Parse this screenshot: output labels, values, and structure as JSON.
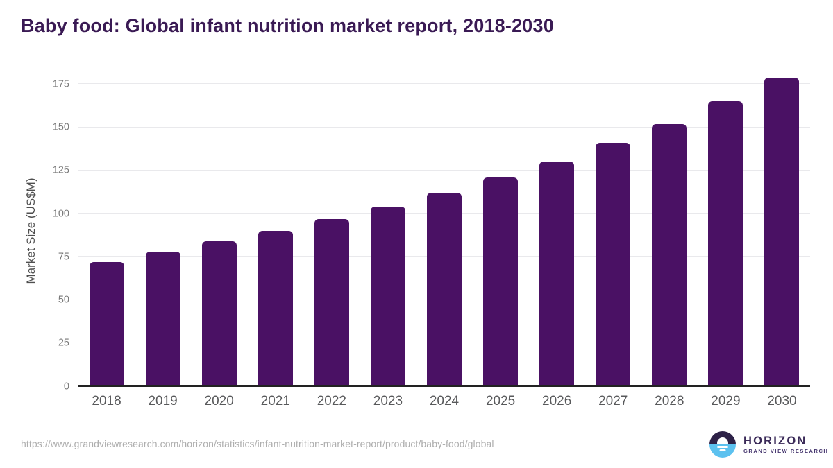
{
  "chart_data": {
    "type": "bar",
    "title": "Baby food: Global infant nutrition market report, 2018-2030",
    "categories": [
      "2018",
      "2019",
      "2020",
      "2021",
      "2022",
      "2023",
      "2024",
      "2025",
      "2026",
      "2027",
      "2028",
      "2029",
      "2030"
    ],
    "values": [
      72,
      78,
      84,
      90,
      97,
      104,
      112,
      121,
      130,
      141,
      152,
      165,
      179
    ],
    "xlabel": "",
    "ylabel": "Market Size (US$M)",
    "ylim": [
      0,
      180
    ],
    "yticks": [
      0,
      25,
      50,
      75,
      100,
      125,
      150,
      175
    ],
    "grid": true,
    "legend": false,
    "bar_color": "#4a1164"
  },
  "colors": {
    "title": "#3a1a54",
    "bar": "#4a1164",
    "gridline": "#e9e9ec",
    "axis_line": "#222222",
    "y_tick_text": "#7a7a7a",
    "x_tick_text": "#58595b",
    "url_text": "#aeaeae",
    "logo_dark": "#2d2147",
    "logo_blue": "#5cc1ef"
  },
  "footer": {
    "source_url": "https://www.grandviewresearch.com/horizon/statistics/infant-nutrition-market-report/product/baby-food/global",
    "logo": {
      "brand": "HORIZON",
      "sub_brand": "GRAND VIEW RESEARCH"
    }
  }
}
